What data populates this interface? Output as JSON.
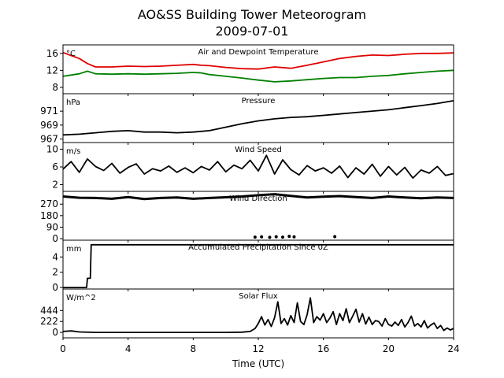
{
  "figure": {
    "title_line1": "AO&SS Building Tower Meteorogram",
    "title_line2": "2009-07-01",
    "xlabel": "Time (UTC)"
  },
  "chart_data": {
    "type": "line",
    "x_label": "Time (UTC)",
    "x_range": [
      0,
      24
    ],
    "x_ticks": [
      "0",
      "4",
      "8",
      "12",
      "16",
      "20",
      "24"
    ],
    "x_tick_values": [
      0,
      4,
      8,
      12,
      16,
      20,
      24
    ],
    "panels": [
      {
        "title": "Air and Dewpoint Temperature",
        "unit": "°C",
        "y_range": [
          6.5,
          18
        ],
        "y_ticks": [
          8,
          12,
          16
        ],
        "y_tick_labels": [
          "8",
          "12",
          "16"
        ],
        "series": [
          {
            "color": "#e00000",
            "x": [
              0,
              0.5,
              1,
              1.5,
              2,
              3,
              4,
              5,
              6,
              7,
              8,
              8.5,
              9,
              10,
              11,
              12,
              13,
              14,
              15,
              16,
              17,
              18,
              19,
              20,
              21,
              22,
              23,
              24
            ],
            "y": [
              16.2,
              15.5,
              14.8,
              13.6,
              12.8,
              12.8,
              13,
              12.9,
              13,
              13.2,
              13.4,
              13.2,
              13.1,
              12.7,
              12.4,
              12.3,
              12.8,
              12.5,
              13.2,
              14,
              14.8,
              15.3,
              15.6,
              15.5,
              15.8,
              16,
              16,
              16.1
            ]
          },
          {
            "color": "#008000",
            "x": [
              0,
              0.5,
              1,
              1.5,
              2,
              3,
              4,
              5,
              6,
              7,
              8,
              8.5,
              9,
              10,
              11,
              12,
              13,
              14,
              15,
              16,
              17,
              18,
              19,
              20,
              21,
              22,
              23,
              24
            ],
            "y": [
              10.6,
              10.9,
              11.2,
              11.8,
              11.2,
              11.1,
              11.2,
              11.1,
              11.2,
              11.3,
              11.5,
              11.4,
              11,
              10.6,
              10.2,
              9.7,
              9.3,
              9.5,
              9.8,
              10.1,
              10.3,
              10.3,
              10.6,
              10.8,
              11.2,
              11.5,
              11.8,
              12
            ]
          }
        ]
      },
      {
        "title": "Pressure",
        "unit": "hPa",
        "y_range": [
          966.5,
          973.5
        ],
        "y_ticks": [
          967,
          969,
          971
        ],
        "y_tick_labels": [
          "967",
          "969",
          "971"
        ],
        "series": [
          {
            "color": "#000000",
            "x": [
              0,
              1,
              2,
              3,
              4,
              5,
              6,
              7,
              8,
              9,
              10,
              11,
              12,
              13,
              14,
              15,
              16,
              17,
              18,
              19,
              20,
              21,
              22,
              23,
              24
            ],
            "y": [
              967.6,
              967.7,
              967.9,
              968.1,
              968.2,
              968,
              968,
              967.9,
              968,
              968.2,
              968.7,
              969.2,
              969.6,
              969.9,
              970.1,
              970.2,
              970.4,
              970.6,
              970.8,
              971,
              971.2,
              971.5,
              971.8,
              972.1,
              972.5
            ]
          }
        ]
      },
      {
        "title": "Wind Speed",
        "unit": "m/s",
        "y_range": [
          0.5,
          11.5
        ],
        "y_ticks": [
          2,
          6,
          10
        ],
        "y_tick_labels": [
          "2",
          "6",
          "10"
        ],
        "series": [
          {
            "color": "#000000",
            "x": [
              0,
              0.5,
              1,
              1.5,
              2,
              2.5,
              3,
              3.5,
              4,
              4.5,
              5,
              5.5,
              6,
              6.5,
              7,
              7.5,
              8,
              8.5,
              9,
              9.5,
              10,
              10.5,
              11,
              11.5,
              12,
              12.5,
              13,
              13.5,
              14,
              14.5,
              15,
              15.5,
              16,
              16.5,
              17,
              17.5,
              18,
              18.5,
              19,
              19.5,
              20,
              20.5,
              21,
              21.5,
              22,
              22.5,
              23,
              23.5,
              24
            ],
            "y": [
              5.5,
              7.2,
              4.8,
              7.8,
              6.1,
              5.2,
              6.8,
              4.6,
              5.9,
              6.7,
              4.4,
              5.6,
              5.1,
              6.2,
              4.8,
              5.8,
              4.7,
              6.1,
              5.3,
              7.2,
              4.9,
              6.4,
              5.6,
              7.5,
              5.1,
              8.6,
              4.4,
              7.6,
              5.4,
              4.2,
              6.3,
              5.1,
              5.8,
              4.6,
              6.2,
              3.6,
              5.8,
              4.4,
              6.6,
              3.9,
              6.1,
              4.2,
              5.9,
              3.5,
              5.3,
              4.6,
              6.1,
              4.1,
              4.5
            ]
          }
        ]
      },
      {
        "title": "Wind Direction",
        "unit": "",
        "y_range": [
          -12,
          370
        ],
        "y_ticks": [
          0,
          90,
          180,
          270
        ],
        "y_tick_labels": [
          "0",
          "90",
          "180",
          "270"
        ],
        "series": [
          {
            "color": "#000000",
            "x": [
              0,
              1,
              2,
              3,
              4,
              5,
              6,
              7,
              8,
              9,
              10,
              11,
              12,
              13,
              14,
              15,
              16,
              17,
              18,
              19,
              20,
              21,
              22,
              23,
              24
            ],
            "y": [
              330,
              320,
              318,
              312,
              325,
              310,
              318,
              322,
              312,
              318,
              324,
              330,
              340,
              348,
              335,
              322,
              328,
              333,
              325,
              318,
              330,
              322,
              316,
              322,
              318
            ]
          },
          {
            "color": "#000000",
            "x": [
              11.8,
              12.2,
              12.7,
              13.1,
              13.5,
              13.9,
              14.2,
              16.7
            ],
            "y": [
              12,
              14,
              10,
              15,
              12,
              18,
              14,
              16
            ]
          }
        ]
      },
      {
        "title": "Accumulated Precipitation Since 0Z",
        "unit": "mm",
        "y_range": [
          -0.2,
          6.2
        ],
        "y_ticks": [
          0,
          2,
          4
        ],
        "y_tick_labels": [
          "0",
          "2",
          "4"
        ],
        "series": [
          {
            "color": "#000000",
            "x": [
              0,
              1.45,
              1.5,
              1.68,
              1.73,
              24
            ],
            "y": [
              0,
              0,
              1.2,
              1.2,
              5.6,
              5.6
            ]
          }
        ]
      },
      {
        "title": "Solar Flux",
        "unit": "W/m^2",
        "y_range": [
          -110,
          880
        ],
        "y_ticks": [
          0,
          222,
          444
        ],
        "y_tick_labels": [
          "0",
          "222",
          "444"
        ],
        "series": [
          {
            "color": "#000000",
            "x": [
              0,
              0.5,
              1,
              2,
              4,
              6,
              8,
              10,
              11,
              11.5,
              11.8,
              12,
              12.2,
              12.4,
              12.6,
              12.8,
              13,
              13.2,
              13.4,
              13.6,
              13.8,
              14,
              14.2,
              14.4,
              14.6,
              14.8,
              15,
              15.2,
              15.4,
              15.6,
              15.8,
              16,
              16.2,
              16.4,
              16.6,
              16.8,
              17,
              17.2,
              17.4,
              17.6,
              17.8,
              18,
              18.2,
              18.4,
              18.6,
              18.8,
              19,
              19.2,
              19.4,
              19.6,
              19.8,
              20,
              20.2,
              20.4,
              20.6,
              20.8,
              21,
              21.2,
              21.4,
              21.6,
              21.8,
              22,
              22.2,
              22.4,
              22.6,
              22.8,
              23,
              23.2,
              23.4,
              23.6,
              23.8,
              24
            ],
            "y": [
              20,
              30,
              10,
              0,
              0,
              0,
              0,
              0,
              5,
              20,
              80,
              180,
              320,
              150,
              260,
              120,
              300,
              620,
              180,
              280,
              150,
              340,
              200,
              600,
              220,
              160,
              360,
              700,
              200,
              320,
              250,
              380,
              200,
              290,
              420,
              160,
              380,
              240,
              480,
              200,
              330,
              470,
              210,
              380,
              170,
              310,
              160,
              240,
              220,
              130,
              280,
              160,
              130,
              210,
              140,
              260,
              110,
              200,
              330,
              130,
              180,
              110,
              240,
              90,
              150,
              190,
              80,
              140,
              40,
              90,
              50,
              80
            ]
          }
        ]
      }
    ]
  }
}
